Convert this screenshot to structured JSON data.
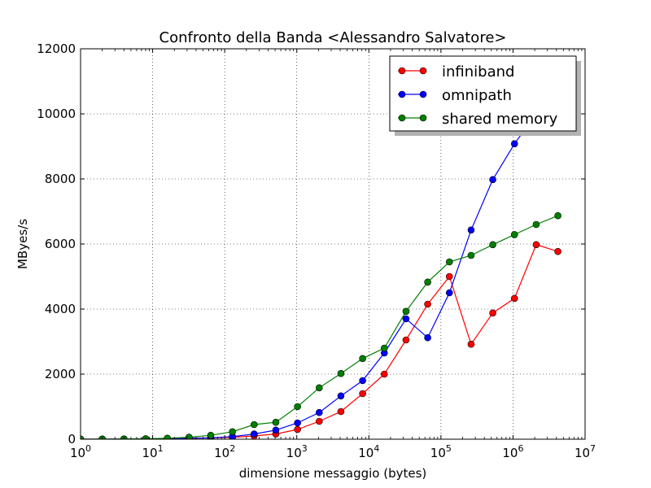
{
  "chart_data": {
    "type": "line",
    "title": "Confronto della Banda <Alessandro Salvatore>",
    "xlabel": "dimensione messaggio (bytes)",
    "ylabel": "MByes/s",
    "xscale": "log",
    "xlim": [
      1,
      10000000
    ],
    "ylim": [
      0,
      12000
    ],
    "grid": true,
    "legend_position": "top-right",
    "x_ticks": [
      {
        "base": "10",
        "exp": "0",
        "value": 1
      },
      {
        "base": "10",
        "exp": "1",
        "value": 10
      },
      {
        "base": "10",
        "exp": "2",
        "value": 100
      },
      {
        "base": "10",
        "exp": "3",
        "value": 1000
      },
      {
        "base": "10",
        "exp": "4",
        "value": 10000
      },
      {
        "base": "10",
        "exp": "5",
        "value": 100000
      },
      {
        "base": "10",
        "exp": "6",
        "value": 1000000
      },
      {
        "base": "10",
        "exp": "7",
        "value": 10000000
      }
    ],
    "y_ticks": [
      {
        "label": "0",
        "value": 0
      },
      {
        "label": "2000",
        "value": 2000
      },
      {
        "label": "4000",
        "value": 4000
      },
      {
        "label": "6000",
        "value": 6000
      },
      {
        "label": "8000",
        "value": 8000
      },
      {
        "label": "10000",
        "value": 10000
      },
      {
        "label": "12000",
        "value": 12000
      }
    ],
    "x": [
      1,
      2,
      4,
      8,
      16,
      32,
      64,
      128,
      256,
      512,
      1024,
      2048,
      4096,
      8192,
      16384,
      32768,
      65536,
      131072,
      262144,
      524288,
      1048576,
      2097152,
      4194304
    ],
    "series": [
      {
        "name": "infiniband",
        "color": "#ff0000",
        "values": [
          1,
          2,
          4,
          8,
          16,
          30,
          40,
          60,
          100,
          160,
          300,
          550,
          850,
          1400,
          2000,
          3050,
          4150,
          5000,
          2920,
          3880,
          4330,
          5980,
          5770
        ]
      },
      {
        "name": "omnipath",
        "color": "#0000ff",
        "values": [
          1,
          2,
          4,
          8,
          16,
          30,
          40,
          80,
          160,
          280,
          500,
          820,
          1330,
          1800,
          2650,
          3700,
          3120,
          4500,
          6430,
          7980,
          9080,
          10000,
          10800
        ]
      },
      {
        "name": "shared memory",
        "color": "#008000",
        "values": [
          2,
          4,
          8,
          15,
          30,
          60,
          120,
          230,
          450,
          520,
          1000,
          1580,
          2020,
          2480,
          2800,
          3930,
          4830,
          5450,
          5650,
          5980,
          6290,
          6600,
          6870
        ]
      }
    ]
  }
}
